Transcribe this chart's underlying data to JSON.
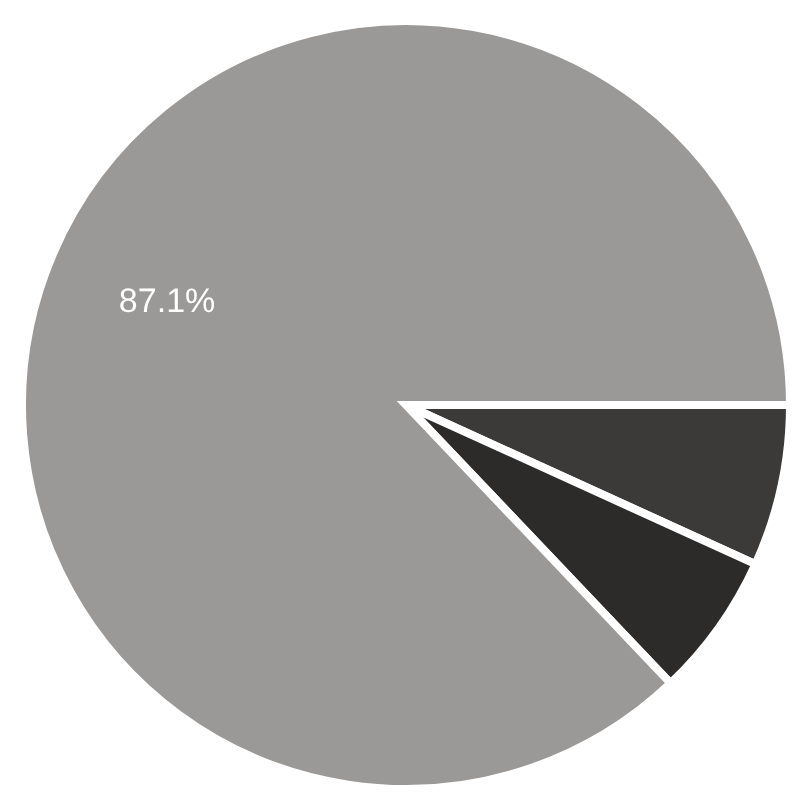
{
  "chart_data": {
    "type": "pie",
    "categories": [
      null,
      null,
      null
    ],
    "values": [
      6.8,
      6.1,
      87.1
    ],
    "colors": [
      "#3b3a39",
      "#2c2b2a",
      "#9b9997"
    ],
    "value_labels": [
      null,
      null,
      "87.1%"
    ]
  }
}
